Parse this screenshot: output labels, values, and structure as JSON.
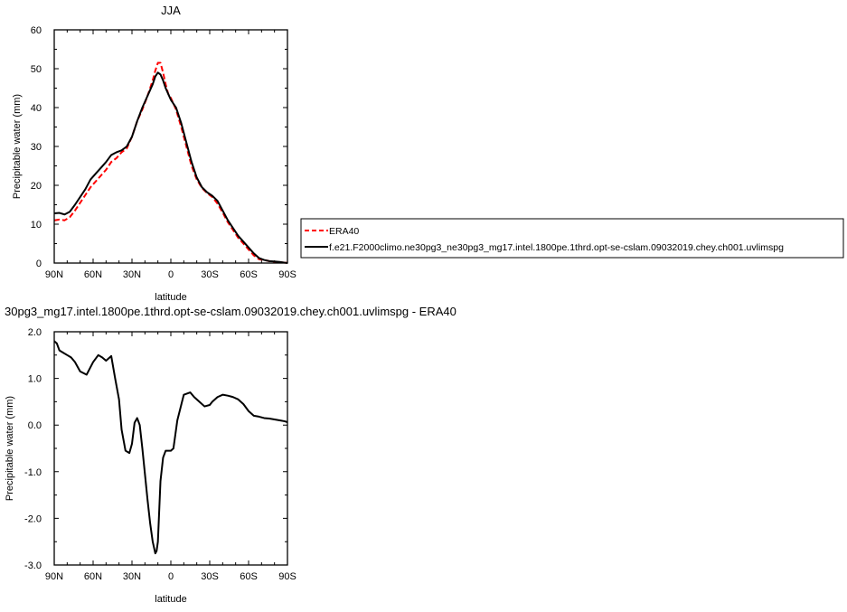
{
  "chart_data": [
    {
      "type": "line",
      "title": "JJA",
      "xlabel": "latitude",
      "ylabel": "Precipitable water (mm)",
      "xlim": [
        90,
        -90
      ],
      "ylim": [
        0,
        60
      ],
      "x_ticks": [
        90,
        60,
        30,
        0,
        -30,
        -60,
        -90
      ],
      "x_tick_labels": [
        "90N",
        "60N",
        "30N",
        "0",
        "30S",
        "60S",
        "90S"
      ],
      "y_ticks": [
        0,
        10,
        20,
        30,
        40,
        50,
        60
      ],
      "y_tick_labels": [
        "0",
        "10",
        "20",
        "30",
        "40",
        "50",
        "60"
      ],
      "grid": false,
      "legend_position": "right",
      "series": [
        {
          "name": "ERA40",
          "color": "#ff0000",
          "dash": "dashed",
          "x": [
            90,
            86,
            82,
            78,
            74,
            70,
            66,
            62,
            58,
            54,
            50,
            46,
            42,
            38,
            34,
            30,
            26,
            22,
            18,
            14,
            12,
            10,
            8,
            6,
            4,
            2,
            0,
            -4,
            -8,
            -12,
            -16,
            -20,
            -24,
            -28,
            -32,
            -36,
            -40,
            -44,
            -48,
            -52,
            -56,
            -60,
            -64,
            -68,
            -72,
            -76,
            -80,
            -84,
            -88,
            -90
          ],
          "y": [
            11,
            11.2,
            11,
            11.8,
            13.5,
            15.5,
            17.5,
            19.5,
            21,
            22.5,
            24,
            26,
            27,
            28.5,
            29.5,
            32.5,
            36.5,
            39.5,
            43,
            47,
            49.5,
            51.5,
            51.5,
            49,
            46,
            43.5,
            42.5,
            39.5,
            35,
            30,
            25,
            21.5,
            19.3,
            18,
            17,
            15.3,
            13,
            10.5,
            8.5,
            6.5,
            5,
            3.5,
            2,
            1,
            0.8,
            0.5,
            0.3,
            0.2,
            0.1,
            0.1
          ]
        },
        {
          "name": "f.e21.F2000climo.ne30pg3_ne30pg3_mg17.intel.1800pe.1thrd.opt-se-cslam.09032019.chey.ch001.uvlimspg",
          "color": "#000000",
          "dash": "solid",
          "x": [
            90,
            86,
            82,
            78,
            74,
            70,
            66,
            62,
            58,
            54,
            50,
            46,
            42,
            38,
            34,
            30,
            26,
            22,
            18,
            14,
            12,
            10,
            8,
            6,
            4,
            2,
            0,
            -4,
            -8,
            -12,
            -16,
            -20,
            -24,
            -28,
            -32,
            -36,
            -40,
            -44,
            -48,
            -52,
            -56,
            -60,
            -64,
            -68,
            -72,
            -76,
            -80,
            -84,
            -88,
            -90
          ],
          "y": [
            12.8,
            12.9,
            12.5,
            13.2,
            15,
            17,
            19,
            21.5,
            23,
            24.5,
            26,
            27.8,
            28.5,
            29,
            30,
            32.5,
            36.5,
            40,
            43,
            46,
            48,
            49,
            48.5,
            47,
            45,
            43.5,
            42,
            40,
            36,
            31,
            26,
            22,
            19.5,
            18.2,
            17.3,
            16,
            13.5,
            11,
            9,
            7,
            5.5,
            4,
            2.5,
            1.3,
            0.8,
            0.5,
            0.4,
            0.3,
            0.1,
            0
          ]
        }
      ]
    },
    {
      "type": "line",
      "title": "30pg3_mg17.intel.1800pe.1thrd.opt-se-cslam.09032019.chey.ch001.uvlimspg - ERA40",
      "xlabel": "latitude",
      "ylabel": "Precipitable water (mm)",
      "xlim": [
        90,
        -90
      ],
      "ylim": [
        -3,
        2
      ],
      "x_ticks": [
        90,
        60,
        30,
        0,
        -30,
        -60,
        -90
      ],
      "x_tick_labels": [
        "90N",
        "60N",
        "30N",
        "0",
        "30S",
        "60S",
        "90S"
      ],
      "y_ticks": [
        -3,
        -2,
        -1,
        0,
        1,
        2
      ],
      "y_tick_labels": [
        "-3.0",
        "-2.0",
        "-1.0",
        "0.0",
        "1.0",
        "2.0"
      ],
      "grid": false,
      "series": [
        {
          "color": "#000000",
          "dash": "solid",
          "x": [
            90,
            88,
            86,
            83,
            80,
            77,
            74,
            70,
            65,
            60,
            56,
            53,
            50,
            46,
            43,
            40,
            38,
            35,
            32,
            30,
            28,
            26,
            24,
            22,
            20,
            18,
            16,
            14,
            12,
            11,
            10,
            8,
            6,
            4,
            2,
            0,
            -2,
            -5,
            -10,
            -15,
            -18,
            -22,
            -26,
            -30,
            -32,
            -36,
            -40,
            -44,
            -48,
            -52,
            -56,
            -60,
            -64,
            -68,
            -72,
            -76,
            -80,
            -84,
            -88,
            -90
          ],
          "y": [
            1.8,
            1.75,
            1.6,
            1.55,
            1.5,
            1.45,
            1.35,
            1.15,
            1.08,
            1.35,
            1.5,
            1.45,
            1.38,
            1.48,
            1.0,
            0.55,
            -0.1,
            -0.55,
            -0.6,
            -0.4,
            0.05,
            0.15,
            0.0,
            -0.5,
            -1.05,
            -1.6,
            -2.1,
            -2.5,
            -2.75,
            -2.7,
            -2.5,
            -1.2,
            -0.7,
            -0.55,
            -0.55,
            -0.55,
            -0.5,
            0.1,
            0.65,
            0.7,
            0.6,
            0.5,
            0.4,
            0.43,
            0.5,
            0.6,
            0.65,
            0.63,
            0.6,
            0.55,
            0.45,
            0.3,
            0.2,
            0.18,
            0.15,
            0.14,
            0.12,
            0.1,
            0.08,
            0.06
          ]
        }
      ]
    }
  ]
}
